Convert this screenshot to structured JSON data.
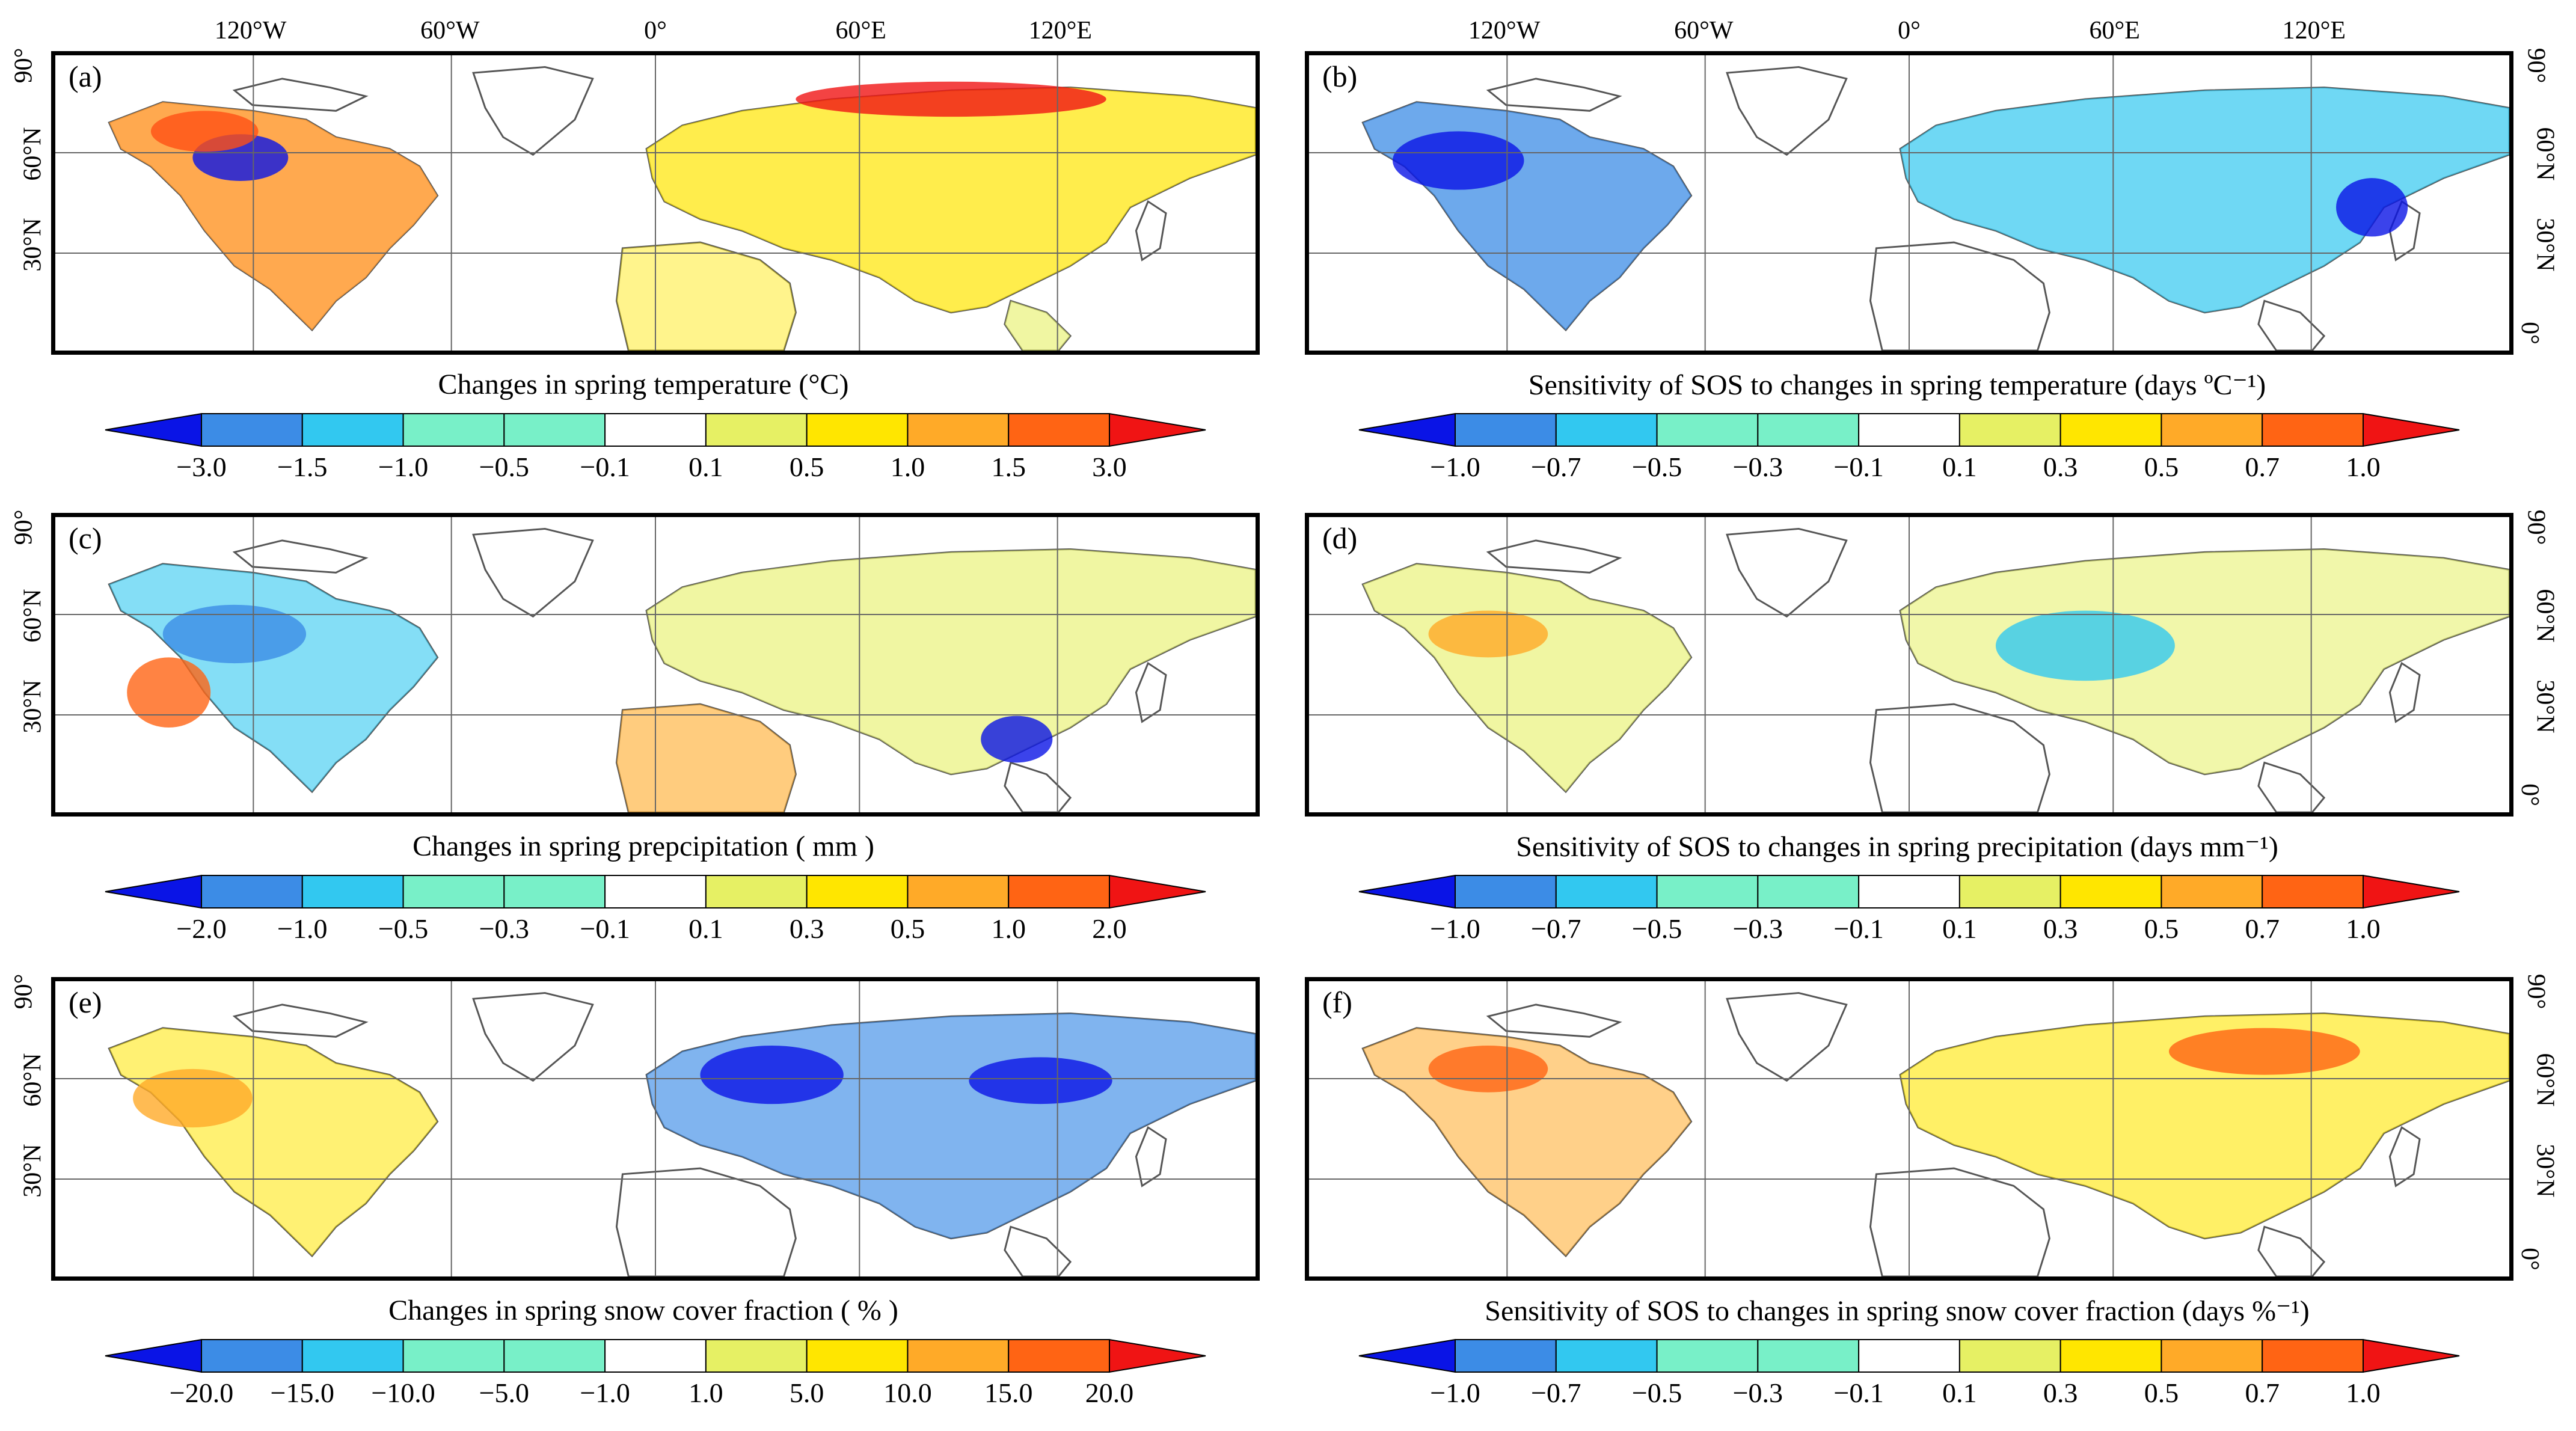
{
  "lon_labels": [
    "120°W",
    "60°W",
    "0°",
    "60°E",
    "120°E"
  ],
  "lat_labels": [
    "90°",
    "60°N",
    "30°N",
    "0°"
  ],
  "panels": [
    {
      "label": "(a)",
      "variable": "temperature",
      "kind": "change",
      "title": "Changes in spring temperature (°C)",
      "ticks": [
        "−3.0",
        "−1.5",
        "−1.0",
        "−0.5",
        "−0.1",
        "0.1",
        "0.5",
        "1.0",
        "1.5",
        "3.0"
      ]
    },
    {
      "label": "(b)",
      "variable": "temperature",
      "kind": "sensitivity",
      "title": "Sensitivity of SOS to changes in spring temperature (days ºC⁻¹)",
      "ticks": [
        "−1.0",
        "−0.7",
        "−0.5",
        "−0.3",
        "−0.1",
        "0.1",
        "0.3",
        "0.5",
        "0.7",
        "1.0"
      ]
    },
    {
      "label": "(c)",
      "variable": "precipitation",
      "kind": "change",
      "title": "Changes in spring prepcipitation ( mm )",
      "ticks": [
        "−2.0",
        "−1.0",
        "−0.5",
        "−0.3",
        "−0.1",
        "0.1",
        "0.3",
        "0.5",
        "1.0",
        "2.0"
      ]
    },
    {
      "label": "(d)",
      "variable": "precipitation",
      "kind": "sensitivity",
      "title": "Sensitivity of SOS to changes in spring precipitation (days mm⁻¹)",
      "ticks": [
        "−1.0",
        "−0.7",
        "−0.5",
        "−0.3",
        "−0.1",
        "0.1",
        "0.3",
        "0.5",
        "0.7",
        "1.0"
      ]
    },
    {
      "label": "(e)",
      "variable": "snow cover fraction",
      "kind": "change",
      "title": "Changes in spring snow cover fraction ( % )",
      "ticks": [
        "−20.0",
        "−15.0",
        "−10.0",
        "−5.0",
        "−1.0",
        "1.0",
        "5.0",
        "10.0",
        "15.0",
        "20.0"
      ]
    },
    {
      "label": "(f)",
      "variable": "snow cover fraction",
      "kind": "sensitivity",
      "title": "Sensitivity of SOS to changes in spring snow cover fraction (days %⁻¹)",
      "ticks": [
        "−1.0",
        "−0.7",
        "−0.5",
        "−0.3",
        "−0.1",
        "0.1",
        "0.3",
        "0.5",
        "0.7",
        "1.0"
      ]
    }
  ],
  "colorbar_colors": [
    "#0a14e6",
    "#3c8ce6",
    "#32c8f0",
    "#78f0c8",
    "#ffffff",
    "#e6f064",
    "#ffe600",
    "#ffaa28",
    "#ff6414",
    "#f01414"
  ],
  "colorbar_end_colors": {
    "low": "#0a14e6",
    "high": "#f01414"
  }
}
